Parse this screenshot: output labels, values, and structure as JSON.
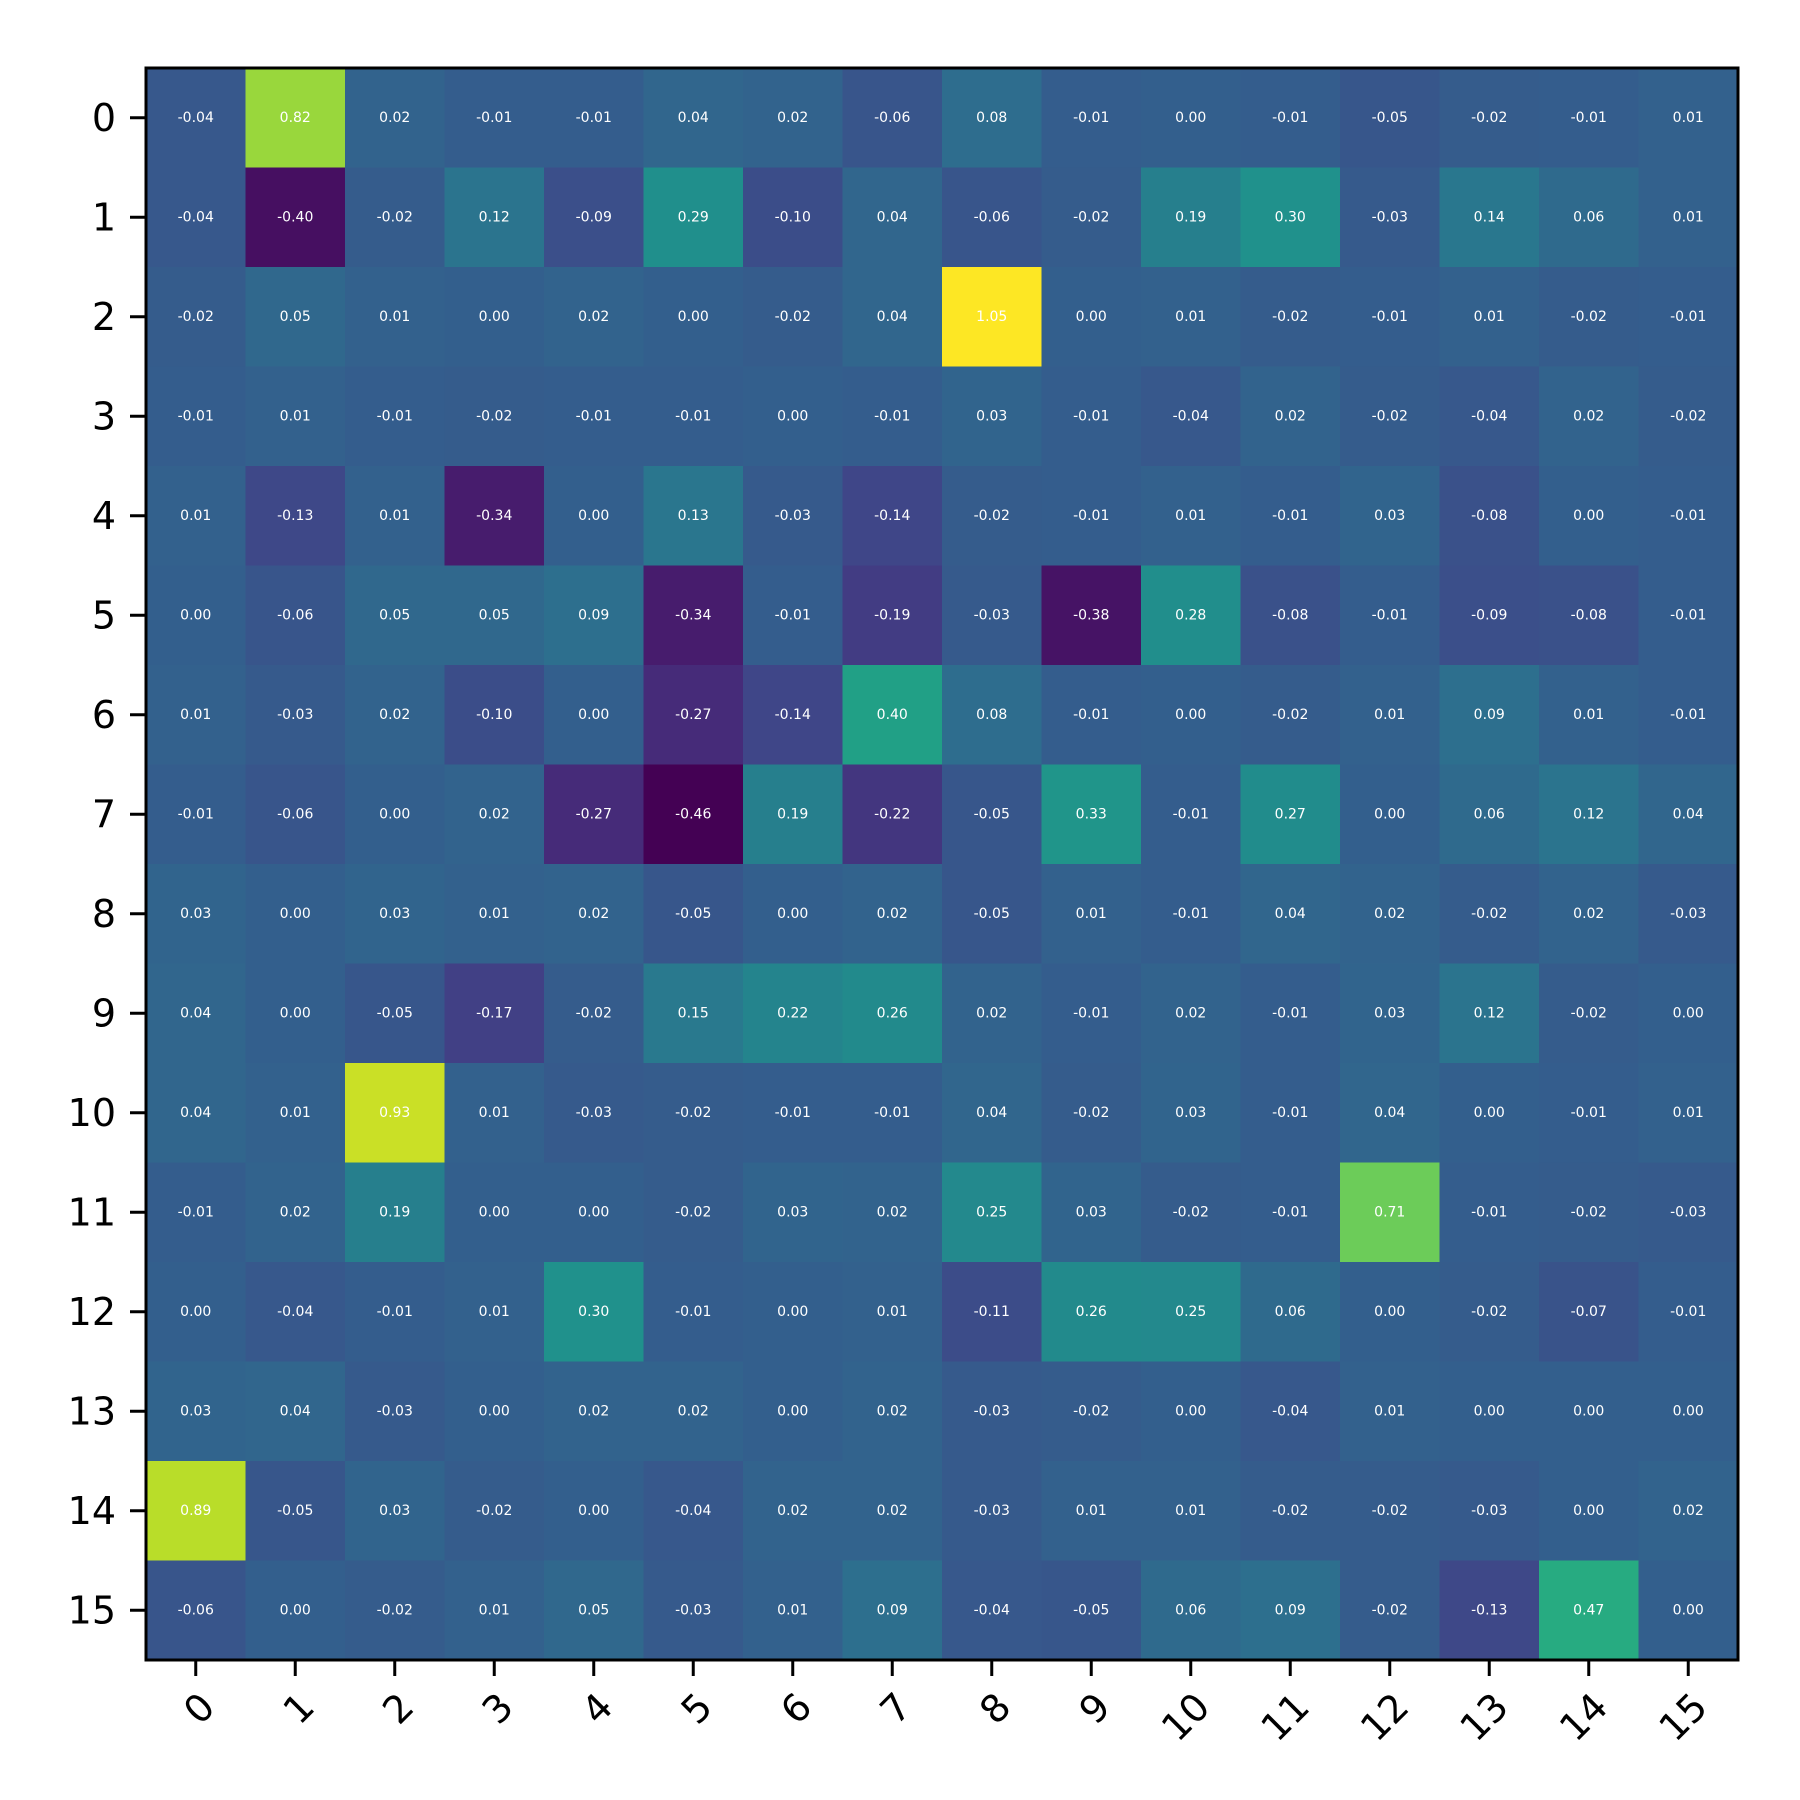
{
  "chart_data": {
    "type": "heatmap",
    "title": "",
    "xlabel": "",
    "ylabel": "",
    "x_categories": [
      "0",
      "1",
      "2",
      "3",
      "4",
      "5",
      "6",
      "7",
      "8",
      "9",
      "10",
      "11",
      "12",
      "13",
      "14",
      "15"
    ],
    "y_categories": [
      "0",
      "1",
      "2",
      "3",
      "4",
      "5",
      "6",
      "7",
      "8",
      "9",
      "10",
      "11",
      "12",
      "13",
      "14",
      "15"
    ],
    "colormap": "viridis",
    "color_range": [
      -0.46,
      1.05
    ],
    "colorbar": false,
    "grid": false,
    "values": [
      [
        -0.04,
        0.82,
        0.02,
        -0.01,
        -0.01,
        0.04,
        0.02,
        -0.06,
        0.08,
        -0.01,
        -0.0,
        -0.01,
        -0.05,
        -0.02,
        -0.01,
        0.01
      ],
      [
        -0.04,
        -0.4,
        -0.02,
        0.12,
        -0.09,
        0.29,
        -0.1,
        0.04,
        -0.06,
        -0.02,
        0.19,
        0.3,
        -0.03,
        0.14,
        0.06,
        0.01
      ],
      [
        -0.02,
        0.05,
        0.01,
        0.0,
        0.02,
        0.0,
        -0.02,
        0.04,
        1.05,
        0.0,
        0.01,
        -0.02,
        -0.01,
        0.01,
        -0.02,
        -0.01
      ],
      [
        -0.01,
        0.01,
        -0.01,
        -0.02,
        -0.01,
        -0.01,
        0.0,
        -0.01,
        0.03,
        -0.01,
        -0.04,
        0.02,
        -0.02,
        -0.04,
        0.02,
        -0.02
      ],
      [
        0.01,
        -0.13,
        0.01,
        -0.34,
        0.0,
        0.13,
        -0.03,
        -0.14,
        -0.02,
        -0.01,
        0.01,
        -0.01,
        0.03,
        -0.08,
        -0.0,
        -0.01
      ],
      [
        -0.0,
        -0.06,
        0.05,
        0.05,
        0.09,
        -0.34,
        -0.01,
        -0.19,
        -0.03,
        -0.38,
        0.28,
        -0.08,
        -0.01,
        -0.09,
        -0.08,
        -0.01
      ],
      [
        0.01,
        -0.03,
        0.02,
        -0.1,
        -0.0,
        -0.27,
        -0.14,
        0.4,
        0.08,
        -0.01,
        -0.0,
        -0.02,
        0.01,
        0.09,
        0.01,
        -0.01
      ],
      [
        -0.01,
        -0.06,
        0.0,
        0.02,
        -0.27,
        -0.46,
        0.19,
        -0.22,
        -0.05,
        0.33,
        -0.01,
        0.27,
        -0.0,
        0.06,
        0.12,
        0.04
      ],
      [
        0.03,
        -0.0,
        0.03,
        0.01,
        0.02,
        -0.05,
        0.0,
        0.02,
        -0.05,
        0.01,
        -0.01,
        0.04,
        0.02,
        -0.02,
        0.02,
        -0.03
      ],
      [
        0.04,
        0.0,
        -0.05,
        -0.17,
        -0.02,
        0.15,
        0.22,
        0.26,
        0.02,
        -0.01,
        0.02,
        -0.01,
        0.03,
        0.12,
        -0.02,
        -0.0
      ],
      [
        0.04,
        0.01,
        0.93,
        0.01,
        -0.03,
        -0.02,
        -0.01,
        -0.01,
        0.04,
        -0.02,
        0.03,
        -0.01,
        0.04,
        0.0,
        -0.01,
        0.01
      ],
      [
        -0.01,
        0.02,
        0.19,
        -0.0,
        0.0,
        -0.02,
        0.03,
        0.02,
        0.25,
        0.03,
        -0.02,
        -0.01,
        0.71,
        -0.01,
        -0.02,
        -0.03
      ],
      [
        -0.0,
        -0.04,
        -0.01,
        0.01,
        0.3,
        -0.01,
        -0.0,
        0.01,
        -0.11,
        0.26,
        0.25,
        0.06,
        0.0,
        -0.02,
        -0.07,
        -0.01
      ],
      [
        0.03,
        0.04,
        -0.03,
        0.0,
        0.02,
        0.02,
        -0.0,
        0.02,
        -0.03,
        -0.02,
        -0.0,
        -0.04,
        0.01,
        0.0,
        -0.0,
        -0.0
      ],
      [
        0.89,
        -0.05,
        0.03,
        -0.02,
        -0.0,
        -0.04,
        0.02,
        0.02,
        -0.03,
        0.01,
        0.01,
        -0.02,
        -0.02,
        -0.03,
        -0.0,
        0.02
      ],
      [
        -0.06,
        0.0,
        -0.02,
        0.01,
        0.05,
        -0.03,
        0.01,
        0.09,
        -0.04,
        -0.05,
        0.06,
        0.09,
        -0.02,
        -0.13,
        0.47,
        0.0
      ]
    ],
    "cell_label_format": "2 decimals",
    "x_tick_rotation_deg": 45
  }
}
